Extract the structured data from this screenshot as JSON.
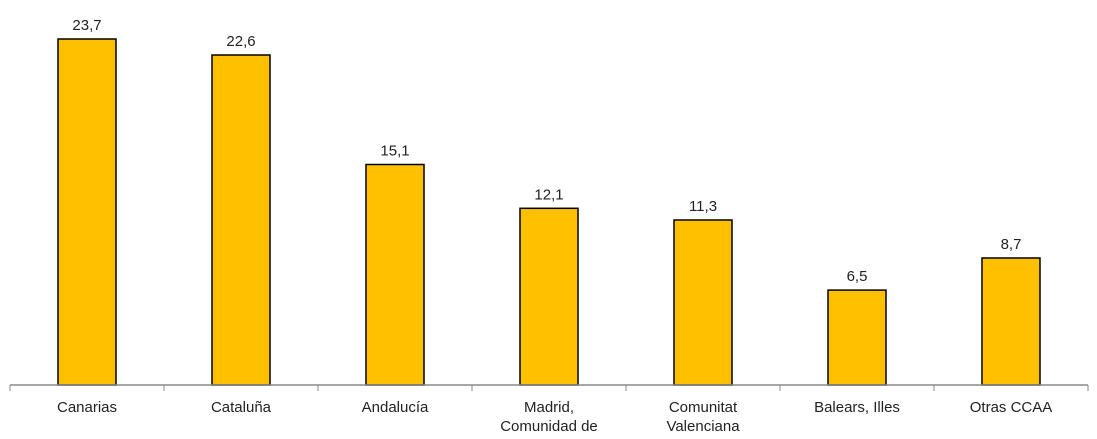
{
  "chart_data": {
    "type": "bar",
    "categories": [
      [
        "Canarias"
      ],
      [
        "Cataluña"
      ],
      [
        "Andalucía"
      ],
      [
        "Madrid,",
        "Comunidad de"
      ],
      [
        "Comunitat",
        "Valenciana"
      ],
      [
        "Balears, Illes"
      ],
      [
        "Otras CCAA"
      ]
    ],
    "values": [
      23.7,
      22.6,
      15.1,
      12.1,
      11.3,
      6.5,
      8.7
    ],
    "value_labels": [
      "23,7",
      "22,6",
      "15,1",
      "12,1",
      "11,3",
      "6,5",
      "8,7"
    ],
    "title": "",
    "xlabel": "",
    "ylabel": "",
    "ylim": [
      0,
      26
    ],
    "grid": false,
    "legend": "none",
    "bar_color": "#FFC000",
    "bar_outline_color": "#000000",
    "axis_color": "#888888"
  }
}
